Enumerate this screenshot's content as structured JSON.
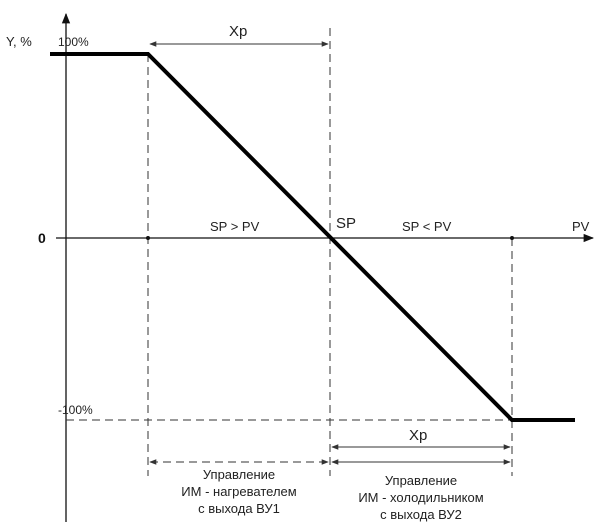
{
  "axes": {
    "y_label": "Y, %",
    "x_label": "PV",
    "zero_label": "0",
    "top_label": "100%",
    "bottom_label": "-100%"
  },
  "points": {
    "sp_label": "SP"
  },
  "regions": {
    "left_condition": "SP > PV",
    "right_condition": "SP < PV"
  },
  "dimensions": {
    "top_band": "Xp",
    "bottom_band": "Xp"
  },
  "zones": {
    "heater": {
      "line1": "Управление",
      "line2": "ИМ - нагревателем",
      "line3": "с выхода ВУ1"
    },
    "cooler": {
      "line1": "Управление",
      "line2": "ИМ - холодильником",
      "line3": "с выхода ВУ2"
    }
  }
}
